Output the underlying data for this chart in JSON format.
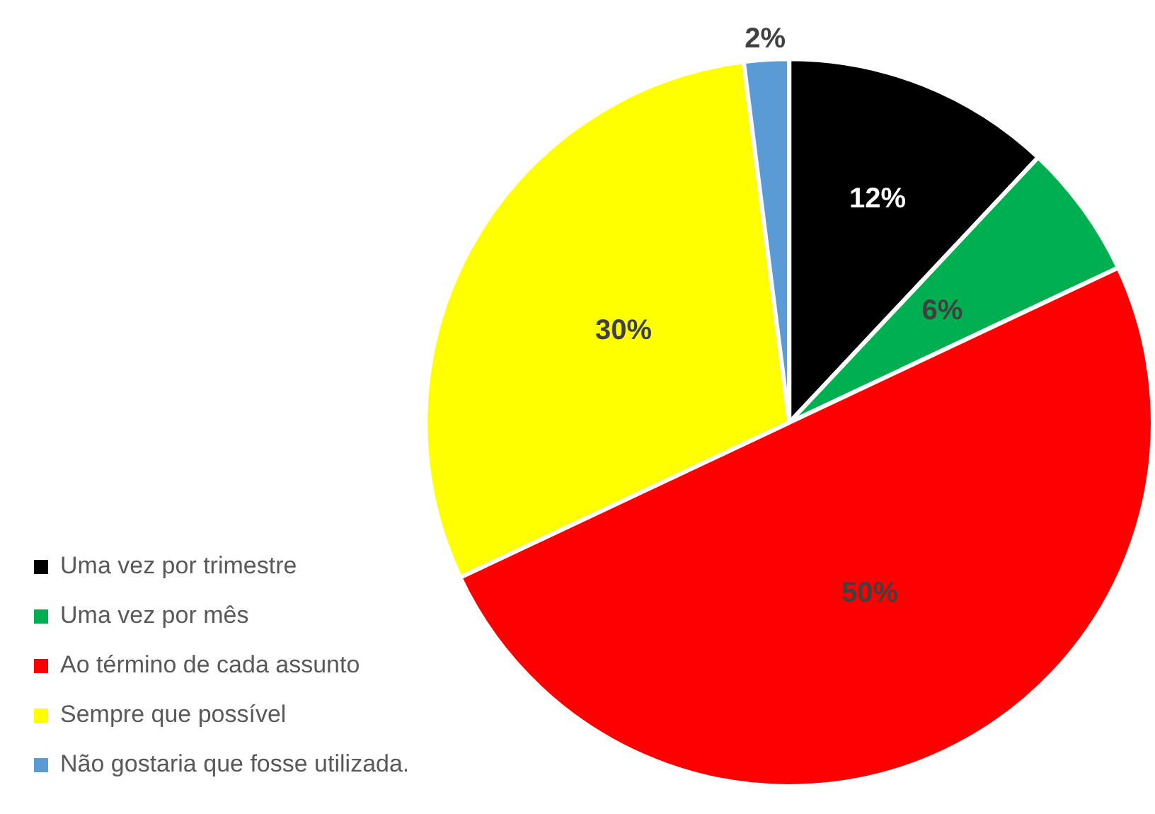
{
  "chart_data": {
    "type": "pie",
    "categories": [
      "Uma vez por trimestre",
      "Uma vez por mês",
      "Ao término de cada assunto",
      "Sempre que possível",
      "Não gostaria que fosse utilizada."
    ],
    "values": [
      12,
      6,
      50,
      30,
      2
    ],
    "colors": [
      "#000000",
      "#00b050",
      "#ff0000",
      "#ffff00",
      "#5b9bd5"
    ],
    "value_labels": [
      "12%",
      "6%",
      "50%",
      "30%",
      "2%"
    ],
    "legend": "bottom left"
  }
}
